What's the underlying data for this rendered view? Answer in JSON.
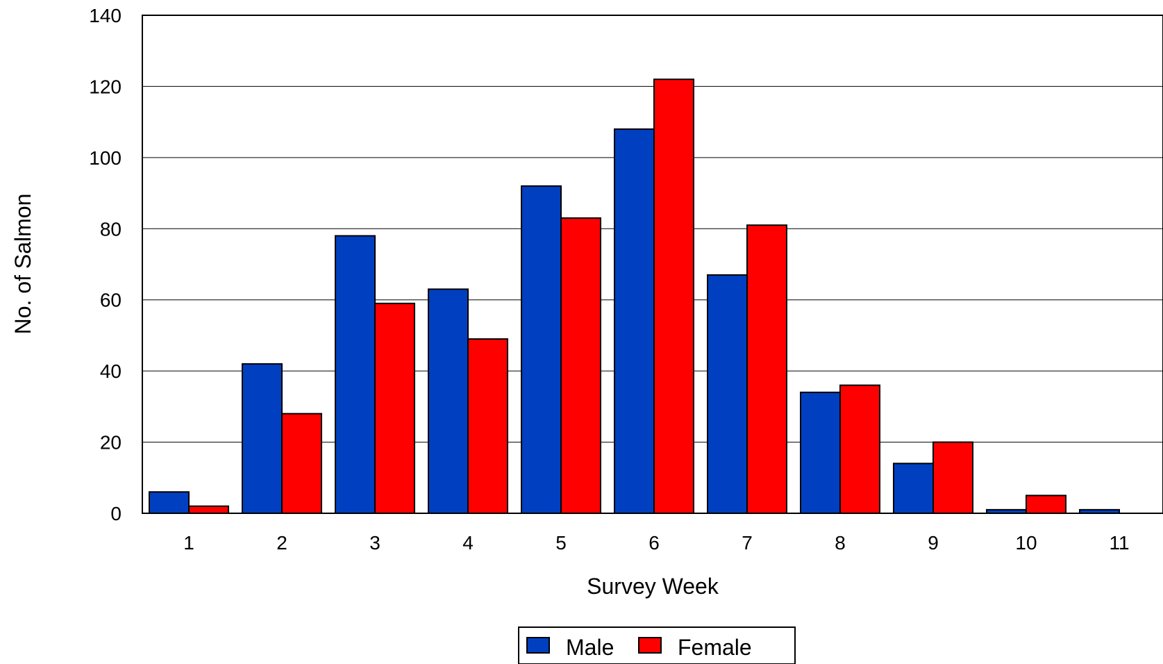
{
  "chart_data": {
    "type": "bar",
    "title": "",
    "xlabel": "Survey Week",
    "ylabel": "No. of Salmon",
    "categories": [
      "1",
      "2",
      "3",
      "4",
      "5",
      "6",
      "7",
      "8",
      "9",
      "10",
      "11"
    ],
    "series": [
      {
        "name": "Male",
        "color": "#0040c0",
        "values": [
          6,
          42,
          78,
          63,
          92,
          108,
          67,
          34,
          14,
          1,
          1
        ]
      },
      {
        "name": "Female",
        "color": "#ff0000",
        "values": [
          2,
          28,
          59,
          49,
          83,
          122,
          81,
          36,
          20,
          5,
          0
        ]
      }
    ],
    "ylim": [
      0,
      140
    ],
    "yticks": [
      "0",
      "20",
      "40",
      "60",
      "80",
      "100",
      "120",
      "140"
    ],
    "grid": true,
    "legend_position": "bottom-center"
  }
}
